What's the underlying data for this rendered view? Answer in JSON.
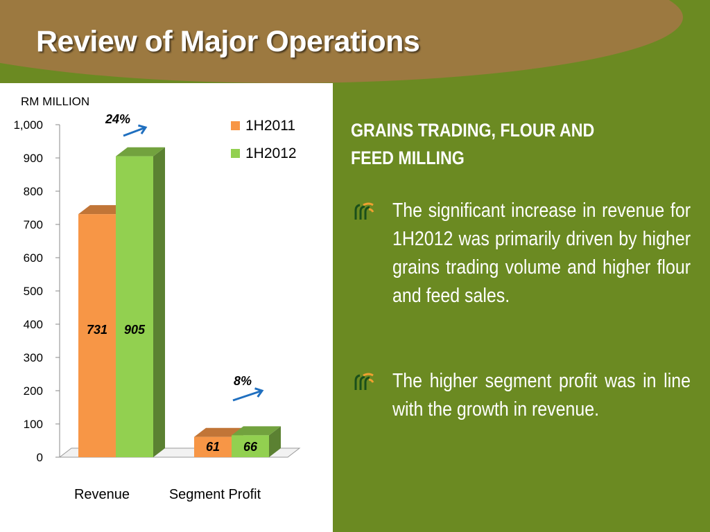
{
  "title": "Review of Major Operations",
  "chart_data": {
    "type": "bar",
    "unit_label": "RM MILLION",
    "categories": [
      "Revenue",
      "Segment Profit"
    ],
    "series": [
      {
        "name": "1H2011",
        "values": [
          731,
          61
        ],
        "labels": [
          "731",
          "61"
        ]
      },
      {
        "name": "1H2012",
        "values": [
          905,
          66
        ],
        "labels": [
          "905",
          "66"
        ]
      }
    ],
    "ylim": [
      0,
      1000
    ],
    "yticks": [
      0,
      100,
      200,
      300,
      400,
      500,
      600,
      700,
      800,
      900,
      1000
    ],
    "ytick_labels": [
      "0",
      "100",
      "200",
      "300",
      "400",
      "500",
      "600",
      "700",
      "800",
      "900",
      "1,000"
    ],
    "legend_position": "top-right",
    "grid": false,
    "three_d": true,
    "annotations": [
      {
        "category": "Revenue",
        "text": "24%"
      },
      {
        "category": "Segment Profit",
        "text": "8%"
      }
    ],
    "colors": {
      "1H2011": "#f79646",
      "1H2012": "#92d050",
      "arrow": "#1f6fbf"
    }
  },
  "section": {
    "heading": "GRAINS TRADING, FLOUR AND FEED MILLING",
    "bullets": [
      {
        "icon": "wheat-icon",
        "text": "The significant increase in revenue  for 1H2012 was primarily driven by higher grains trading volume and higher flour and feed sales."
      },
      {
        "icon": "wheat-icon",
        "text": "The higher segment profit was in line with the growth in revenue."
      }
    ]
  },
  "colors": {
    "header_brown": "#9c7940",
    "panel_green": "#6b8a22"
  }
}
